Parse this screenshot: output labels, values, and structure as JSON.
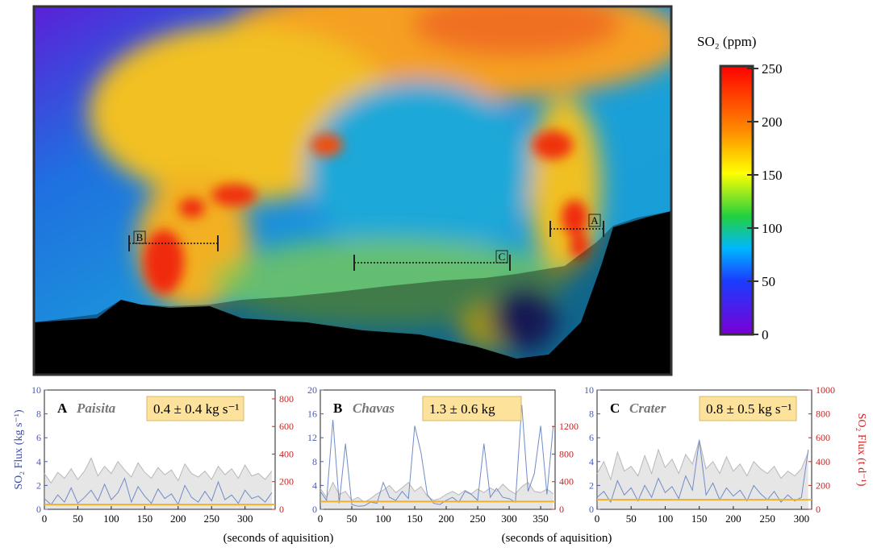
{
  "image": {
    "colorbar": {
      "title": "SO₂ (ppm)",
      "lim": [
        0,
        250
      ],
      "ticks": [
        0,
        50,
        100,
        150,
        200,
        250
      ]
    },
    "markers": [
      "A",
      "B",
      "C"
    ]
  },
  "footer": [
    "(seconds of aquisition)",
    "(seconds of aquisition)"
  ],
  "chart_data": [
    {
      "type": "line",
      "panel": "A",
      "title": "Paisita",
      "annotation": "0.4 ± 0.4 kg s⁻¹",
      "ylabel": "SO₂ Flux (kg s⁻¹)",
      "x": [
        0,
        10,
        20,
        30,
        40,
        50,
        60,
        70,
        80,
        90,
        100,
        110,
        120,
        130,
        140,
        150,
        160,
        170,
        180,
        190,
        200,
        210,
        220,
        230,
        240,
        250,
        260,
        270,
        280,
        290,
        300,
        310,
        320,
        330,
        340
      ],
      "series": [
        {
          "color": "#b8b8b8",
          "values": [
            3.0,
            2.2,
            3.1,
            2.6,
            3.4,
            2.5,
            3.2,
            4.3,
            2.8,
            3.6,
            3.0,
            4.0,
            3.3,
            2.7,
            3.9,
            3.1,
            2.6,
            3.5,
            2.9,
            3.3,
            2.4,
            3.8,
            3.0,
            2.7,
            3.2,
            2.5,
            3.6,
            2.9,
            3.4,
            2.6,
            3.7,
            2.8,
            3.0,
            2.5,
            3.2
          ]
        },
        {
          "color": "#6f8cc8",
          "values": [
            0.9,
            0.4,
            1.2,
            0.6,
            1.8,
            0.5,
            1.0,
            1.6,
            0.7,
            2.1,
            0.8,
            1.4,
            2.6,
            0.6,
            1.9,
            1.1,
            0.5,
            1.7,
            0.9,
            1.3,
            0.4,
            2.0,
            1.0,
            0.6,
            1.5,
            0.7,
            2.3,
            0.8,
            1.2,
            0.5,
            1.6,
            0.9,
            1.1,
            0.6,
            1.4
          ]
        }
      ],
      "mean": 0.4,
      "mean_color": "#f0b030",
      "xlim": [
        0,
        345
      ],
      "xticks": [
        0,
        50,
        100,
        150,
        200,
        250,
        300
      ],
      "ylim": [
        0,
        10
      ],
      "yticks": [
        0,
        2,
        4,
        6,
        8,
        10
      ],
      "y2lim": [
        0,
        864
      ],
      "y2ticks": [
        0,
        200,
        400,
        600,
        800
      ]
    },
    {
      "type": "line",
      "panel": "B",
      "title": "Chavas",
      "annotation": "1.3 ± 0.6 kg",
      "x": [
        0,
        10,
        20,
        30,
        40,
        50,
        60,
        70,
        80,
        90,
        100,
        110,
        120,
        130,
        140,
        150,
        160,
        170,
        180,
        190,
        200,
        210,
        220,
        230,
        240,
        250,
        260,
        270,
        280,
        290,
        300,
        310,
        320,
        330,
        340,
        350,
        360,
        370
      ],
      "series": [
        {
          "color": "#b8b8b8",
          "values": [
            3.5,
            2.0,
            4.5,
            2.5,
            3.0,
            1.5,
            2.0,
            1.2,
            1.8,
            2.6,
            3.2,
            4.0,
            2.8,
            3.6,
            4.5,
            3.0,
            3.8,
            2.2,
            1.5,
            1.8,
            2.5,
            3.0,
            2.4,
            3.2,
            2.6,
            3.4,
            2.8,
            3.6,
            3.0,
            4.2,
            3.2,
            2.6,
            3.8,
            4.5,
            3.0,
            2.8,
            3.4,
            2.6
          ]
        },
        {
          "color": "#6f8cc8",
          "values": [
            3.0,
            1.5,
            15.0,
            1.0,
            11.0,
            0.8,
            0.5,
            0.6,
            1.2,
            1.0,
            4.5,
            2.0,
            1.5,
            3.0,
            1.8,
            14.0,
            9.5,
            2.5,
            1.0,
            0.8,
            1.5,
            2.0,
            1.2,
            3.0,
            2.5,
            1.5,
            11.0,
            2.0,
            3.5,
            2.0,
            1.8,
            1.2,
            17.5,
            3.0,
            6.0,
            14.0,
            2.5,
            14.0
          ]
        }
      ],
      "mean": 1.3,
      "mean_color": "#f0b030",
      "xlim": [
        0,
        373
      ],
      "xticks": [
        0,
        50,
        100,
        150,
        200,
        250,
        300,
        350
      ],
      "ylim": [
        0,
        20
      ],
      "yticks": [
        0,
        4,
        8,
        12,
        16,
        20
      ],
      "y2lim": [
        0,
        1728
      ],
      "y2ticks": [
        0,
        400,
        800,
        1200
      ]
    },
    {
      "type": "line",
      "panel": "C",
      "title": "Crater",
      "annotation": "0.8 ± 0.5 kg s⁻¹",
      "y2label": "SO₂ Flux (t d⁻¹)",
      "x": [
        0,
        10,
        20,
        30,
        40,
        50,
        60,
        70,
        80,
        90,
        100,
        110,
        120,
        130,
        140,
        150,
        160,
        170,
        180,
        190,
        200,
        210,
        220,
        230,
        240,
        250,
        260,
        270,
        280,
        290,
        300,
        310
      ],
      "series": [
        {
          "color": "#b8b8b8",
          "values": [
            3.0,
            4.0,
            2.5,
            4.8,
            3.2,
            3.6,
            2.8,
            4.5,
            3.0,
            5.0,
            3.5,
            4.2,
            3.0,
            4.6,
            3.8,
            5.8,
            3.4,
            4.0,
            3.0,
            4.4,
            3.2,
            3.8,
            2.8,
            4.0,
            3.4,
            3.0,
            3.6,
            2.6,
            3.2,
            2.8,
            3.4,
            4.8
          ]
        },
        {
          "color": "#6f8cc8",
          "values": [
            1.0,
            1.5,
            0.6,
            2.4,
            1.2,
            1.8,
            0.7,
            2.0,
            1.0,
            2.6,
            1.4,
            1.9,
            0.9,
            2.8,
            1.6,
            5.8,
            1.2,
            2.2,
            0.8,
            1.8,
            1.1,
            1.6,
            0.7,
            2.0,
            1.3,
            0.8,
            1.5,
            0.6,
            1.2,
            0.7,
            1.0,
            5.0
          ]
        }
      ],
      "mean": 0.8,
      "mean_color": "#f0b030",
      "xlim": [
        0,
        315
      ],
      "xticks": [
        0,
        50,
        100,
        150,
        200,
        250,
        300
      ],
      "ylim": [
        0,
        10
      ],
      "yticks": [
        0,
        2,
        4,
        6,
        8,
        10
      ],
      "y2lim": [
        0,
        1000
      ],
      "y2ticks": [
        0,
        200,
        400,
        600,
        800,
        1000
      ]
    }
  ]
}
